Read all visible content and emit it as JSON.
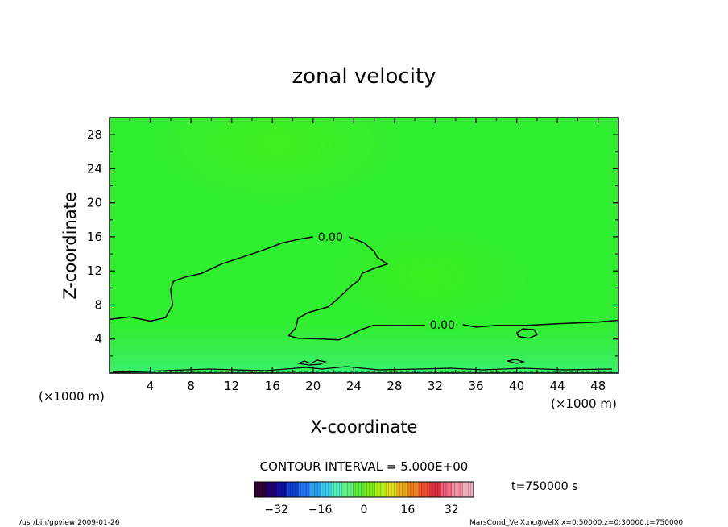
{
  "chart_data": {
    "type": "contour",
    "title": "zonal velocity",
    "xlabel": "X-coordinate",
    "ylabel": "Z-coordinate",
    "x_unit_note": "(×1000 m)",
    "z_unit_note": "(×1000 m)",
    "xlim": [
      0,
      50
    ],
    "ylim": [
      0,
      30
    ],
    "x_ticks": [
      4,
      8,
      12,
      16,
      20,
      24,
      28,
      32,
      36,
      40,
      44,
      48
    ],
    "y_ticks": [
      4,
      8,
      12,
      16,
      20,
      24,
      28
    ],
    "contour_interval_label": "CONTOUR INTERVAL = 5.000E+00",
    "contour_labels": [
      {
        "text": "0.00",
        "x": 21.7,
        "z": 16.0
      },
      {
        "text": "0.00",
        "x": 32.7,
        "z": 5.7
      }
    ],
    "zero_contours": [
      {
        "points": [
          [
            0,
            6.3
          ],
          [
            2,
            6.6
          ],
          [
            4,
            6.1
          ],
          [
            5.5,
            6.5
          ],
          [
            6.2,
            8
          ],
          [
            6,
            9.8
          ],
          [
            6.3,
            10.8
          ],
          [
            7.5,
            11.3
          ],
          [
            9,
            11.7
          ],
          [
            11,
            12.8
          ],
          [
            13,
            13.6
          ],
          [
            15,
            14.4
          ],
          [
            17,
            15.3
          ],
          [
            19,
            15.8
          ],
          [
            20,
            16.0
          ]
        ]
      },
      {
        "points": [
          [
            23.5,
            16.0
          ],
          [
            25,
            15.3
          ],
          [
            26,
            14.3
          ],
          [
            26.3,
            13.6
          ],
          [
            27.3,
            12.8
          ],
          [
            26,
            12.3
          ],
          [
            24.8,
            11.7
          ],
          [
            24.5,
            10.9
          ],
          [
            23.8,
            10.3
          ],
          [
            22.5,
            8.8
          ],
          [
            21.5,
            7.8
          ],
          [
            19.5,
            7.1
          ],
          [
            18.5,
            6.4
          ],
          [
            18.3,
            5.3
          ],
          [
            17.6,
            4.4
          ],
          [
            18.5,
            4.1
          ],
          [
            21,
            4.0
          ],
          [
            22.5,
            3.9
          ],
          [
            23.2,
            4.2
          ],
          [
            24.7,
            5.1
          ],
          [
            25.9,
            5.6
          ],
          [
            29,
            5.6
          ],
          [
            31,
            5.6
          ]
        ]
      },
      {
        "points": [
          [
            34.7,
            5.7
          ],
          [
            36,
            5.4
          ],
          [
            38,
            5.6
          ],
          [
            41,
            5.6
          ],
          [
            44,
            5.8
          ],
          [
            48,
            6.0
          ],
          [
            50,
            6.2
          ]
        ]
      },
      {
        "points": [
          [
            40,
            4.7
          ],
          [
            40.6,
            5.2
          ],
          [
            41.7,
            5.1
          ],
          [
            42,
            4.5
          ],
          [
            41.2,
            4.1
          ],
          [
            40.2,
            4.3
          ],
          [
            40,
            4.7
          ]
        ]
      }
    ],
    "colorbar": {
      "ticks": [
        -32,
        -16,
        0,
        16,
        32
      ],
      "range": [
        -40,
        40
      ],
      "colors": [
        "#300030",
        "#200070",
        "#1010a0",
        "#1040d0",
        "#2070f0",
        "#30a0f0",
        "#40d0f0",
        "#50f0c0",
        "#60f080",
        "#60f040",
        "#80f020",
        "#b0f010",
        "#e0e020",
        "#f0b020",
        "#f08020",
        "#f05030",
        "#e03040",
        "#f06080",
        "#f090a0",
        "#f0b0c0"
      ]
    },
    "time_label": "t=750000 s",
    "footer_left": "/usr/bin/gpview  2009-01-26",
    "footer_right": "MarsCond_VelX.nc@VelX,x=0:50000,z=0:30000,t=750000"
  }
}
